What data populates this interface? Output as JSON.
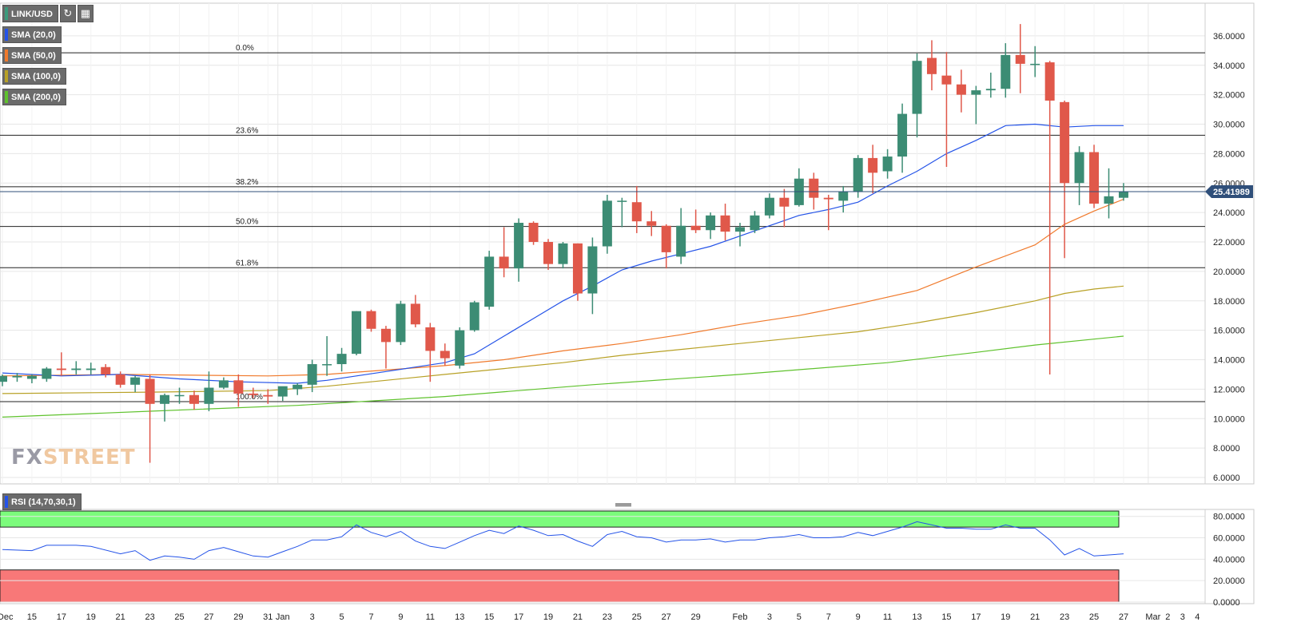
{
  "symbol": {
    "label": "LINK/USD",
    "refresh_icon": "refresh-icon",
    "calendar_icon": "calendar-icon",
    "color": "#3c9b7c"
  },
  "indicators": [
    {
      "label": "SMA (20,0)",
      "color": "#2453e8"
    },
    {
      "label": "SMA (50,0)",
      "color": "#f07a2c"
    },
    {
      "label": "SMA (100,0)",
      "color": "#b8a126"
    },
    {
      "label": "SMA (200,0)",
      "color": "#5fc22d"
    }
  ],
  "rsi": {
    "label": "RSI (14,70,30,1)",
    "color": "#2453e8",
    "overbought": 70,
    "oversold": 30
  },
  "logo": {
    "first": "FX",
    "second": "STREET"
  },
  "current_price": {
    "label": "25.41989",
    "value": 25.41989,
    "color": "#2f4f7a"
  },
  "colors": {
    "bull": "#3c8c74",
    "bear": "#e0584a",
    "grid": "#e6e6e6",
    "fib": "#222222",
    "rsi_overbought_zone": "#7cfc7c",
    "rsi_oversold_zone": "#f87878"
  },
  "chart_data": {
    "type": "candlestick",
    "ylim": [
      6,
      38
    ],
    "y_ticks": [
      "6.0000",
      "8.0000",
      "10.0000",
      "12.0000",
      "14.0000",
      "16.0000",
      "18.0000",
      "20.0000",
      "22.0000",
      "24.0000",
      "26.0000",
      "28.0000",
      "30.0000",
      "32.0000",
      "34.0000",
      "36.0000"
    ],
    "x_ticks": [
      {
        "label": "Dec",
        "idx": 0.2
      },
      {
        "label": "15",
        "idx": 2
      },
      {
        "label": "17",
        "idx": 4
      },
      {
        "label": "19",
        "idx": 6
      },
      {
        "label": "21",
        "idx": 8
      },
      {
        "label": "23",
        "idx": 10
      },
      {
        "label": "25",
        "idx": 12
      },
      {
        "label": "27",
        "idx": 14
      },
      {
        "label": "29",
        "idx": 16
      },
      {
        "label": "31",
        "idx": 18
      },
      {
        "label": "Jan",
        "idx": 19
      },
      {
        "label": "3",
        "idx": 21
      },
      {
        "label": "5",
        "idx": 23
      },
      {
        "label": "7",
        "idx": 25
      },
      {
        "label": "9",
        "idx": 27
      },
      {
        "label": "11",
        "idx": 29
      },
      {
        "label": "13",
        "idx": 31
      },
      {
        "label": "15",
        "idx": 33
      },
      {
        "label": "17",
        "idx": 35
      },
      {
        "label": "19",
        "idx": 37
      },
      {
        "label": "21",
        "idx": 39
      },
      {
        "label": "23",
        "idx": 41
      },
      {
        "label": "25",
        "idx": 43
      },
      {
        "label": "27",
        "idx": 45
      },
      {
        "label": "29",
        "idx": 47
      },
      {
        "label": "Feb",
        "idx": 50
      },
      {
        "label": "3",
        "idx": 52
      },
      {
        "label": "5",
        "idx": 54
      },
      {
        "label": "7",
        "idx": 56
      },
      {
        "label": "9",
        "idx": 58
      },
      {
        "label": "11",
        "idx": 60
      },
      {
        "label": "13",
        "idx": 62
      },
      {
        "label": "15",
        "idx": 64
      },
      {
        "label": "17",
        "idx": 66
      },
      {
        "label": "19",
        "idx": 68
      },
      {
        "label": "21",
        "idx": 70
      },
      {
        "label": "23",
        "idx": 72
      },
      {
        "label": "25",
        "idx": 74
      },
      {
        "label": "27",
        "idx": 76
      },
      {
        "label": "Mar",
        "idx": 78
      },
      {
        "label": "2",
        "idx": 79
      },
      {
        "label": "3",
        "idx": 80
      },
      {
        "label": "4",
        "idx": 81
      }
    ],
    "v_gridlines": [
      19,
      50,
      78
    ],
    "fibonacci": [
      {
        "label": "0.0%",
        "value": 34.85
      },
      {
        "label": "23.6%",
        "value": 29.25
      },
      {
        "label": "38.2%",
        "value": 25.75
      },
      {
        "label": "50.0%",
        "value": 23.05
      },
      {
        "label": "61.8%",
        "value": 20.25
      },
      {
        "label": "100.0%",
        "value": 11.15
      }
    ],
    "candles": [
      {
        "o": 12.5,
        "h": 13.0,
        "l": 12.2,
        "c": 12.9
      },
      {
        "o": 12.8,
        "h": 13.1,
        "l": 12.5,
        "c": 12.9
      },
      {
        "o": 12.7,
        "h": 13.0,
        "l": 12.4,
        "c": 12.9
      },
      {
        "o": 12.7,
        "h": 13.5,
        "l": 12.5,
        "c": 13.4
      },
      {
        "o": 13.4,
        "h": 14.5,
        "l": 12.9,
        "c": 13.3
      },
      {
        "o": 13.3,
        "h": 13.9,
        "l": 13.0,
        "c": 13.4
      },
      {
        "o": 13.3,
        "h": 13.8,
        "l": 13.0,
        "c": 13.4
      },
      {
        "o": 13.5,
        "h": 13.7,
        "l": 12.8,
        "c": 13.0
      },
      {
        "o": 13.0,
        "h": 13.2,
        "l": 12.1,
        "c": 12.3
      },
      {
        "o": 12.3,
        "h": 12.9,
        "l": 11.8,
        "c": 12.8
      },
      {
        "o": 12.7,
        "h": 13.0,
        "l": 7.0,
        "c": 11.0
      },
      {
        "o": 11.0,
        "h": 11.7,
        "l": 9.8,
        "c": 11.6
      },
      {
        "o": 11.6,
        "h": 12.1,
        "l": 11.0,
        "c": 11.6
      },
      {
        "o": 11.6,
        "h": 11.9,
        "l": 10.6,
        "c": 11.0
      },
      {
        "o": 11.0,
        "h": 13.2,
        "l": 10.5,
        "c": 12.1
      },
      {
        "o": 12.1,
        "h": 12.8,
        "l": 12.0,
        "c": 12.6
      },
      {
        "o": 12.6,
        "h": 13.0,
        "l": 10.8,
        "c": 11.7
      },
      {
        "o": 11.7,
        "h": 12.1,
        "l": 11.4,
        "c": 11.6
      },
      {
        "o": 11.6,
        "h": 12.0,
        "l": 11.0,
        "c": 11.5
      },
      {
        "o": 11.5,
        "h": 12.1,
        "l": 11.2,
        "c": 12.2
      },
      {
        "o": 12.0,
        "h": 12.4,
        "l": 11.6,
        "c": 12.3
      },
      {
        "o": 12.3,
        "h": 14.0,
        "l": 11.8,
        "c": 13.7
      },
      {
        "o": 13.7,
        "h": 15.6,
        "l": 12.9,
        "c": 13.7
      },
      {
        "o": 13.7,
        "h": 14.8,
        "l": 13.2,
        "c": 14.4
      },
      {
        "o": 14.4,
        "h": 17.3,
        "l": 14.3,
        "c": 17.3
      },
      {
        "o": 17.3,
        "h": 17.4,
        "l": 15.9,
        "c": 16.1
      },
      {
        "o": 16.1,
        "h": 16.3,
        "l": 13.4,
        "c": 15.2
      },
      {
        "o": 15.2,
        "h": 18.0,
        "l": 15.0,
        "c": 17.8
      },
      {
        "o": 17.8,
        "h": 18.4,
        "l": 16.2,
        "c": 16.4
      },
      {
        "o": 16.2,
        "h": 16.5,
        "l": 12.5,
        "c": 14.6
      },
      {
        "o": 14.6,
        "h": 15.1,
        "l": 13.6,
        "c": 14.1
      },
      {
        "o": 13.6,
        "h": 16.2,
        "l": 13.4,
        "c": 16.0
      },
      {
        "o": 16.0,
        "h": 18.0,
        "l": 15.9,
        "c": 17.9
      },
      {
        "o": 17.6,
        "h": 21.4,
        "l": 17.4,
        "c": 21.0
      },
      {
        "o": 21.0,
        "h": 23.0,
        "l": 19.6,
        "c": 20.2
      },
      {
        "o": 20.2,
        "h": 23.6,
        "l": 19.3,
        "c": 23.3
      },
      {
        "o": 23.3,
        "h": 23.4,
        "l": 21.8,
        "c": 22.0
      },
      {
        "o": 22.0,
        "h": 22.2,
        "l": 20.1,
        "c": 20.5
      },
      {
        "o": 20.5,
        "h": 22.0,
        "l": 20.2,
        "c": 21.9
      },
      {
        "o": 21.9,
        "h": 21.9,
        "l": 18.0,
        "c": 18.5
      },
      {
        "o": 18.5,
        "h": 22.3,
        "l": 17.1,
        "c": 21.7
      },
      {
        "o": 21.7,
        "h": 25.2,
        "l": 21.2,
        "c": 24.8
      },
      {
        "o": 24.8,
        "h": 25.0,
        "l": 23.0,
        "c": 24.8
      },
      {
        "o": 24.7,
        "h": 25.8,
        "l": 22.6,
        "c": 23.4
      },
      {
        "o": 23.4,
        "h": 24.1,
        "l": 22.4,
        "c": 23.1
      },
      {
        "o": 23.1,
        "h": 23.2,
        "l": 20.2,
        "c": 21.3
      },
      {
        "o": 21.0,
        "h": 24.3,
        "l": 20.5,
        "c": 23.1
      },
      {
        "o": 23.1,
        "h": 24.2,
        "l": 22.6,
        "c": 22.8
      },
      {
        "o": 22.8,
        "h": 24.0,
        "l": 22.2,
        "c": 23.8
      },
      {
        "o": 23.8,
        "h": 24.6,
        "l": 22.1,
        "c": 22.7
      },
      {
        "o": 22.7,
        "h": 23.3,
        "l": 21.7,
        "c": 23.0
      },
      {
        "o": 22.8,
        "h": 24.1,
        "l": 22.6,
        "c": 23.8
      },
      {
        "o": 23.8,
        "h": 25.3,
        "l": 23.6,
        "c": 25.0
      },
      {
        "o": 25.0,
        "h": 25.6,
        "l": 23.0,
        "c": 24.4
      },
      {
        "o": 24.5,
        "h": 27.0,
        "l": 24.4,
        "c": 26.3
      },
      {
        "o": 26.3,
        "h": 26.7,
        "l": 24.2,
        "c": 25.0
      },
      {
        "o": 25.0,
        "h": 25.2,
        "l": 22.8,
        "c": 24.9
      },
      {
        "o": 24.8,
        "h": 25.8,
        "l": 24.0,
        "c": 25.4
      },
      {
        "o": 25.4,
        "h": 27.9,
        "l": 25.0,
        "c": 27.7
      },
      {
        "o": 27.7,
        "h": 28.6,
        "l": 25.3,
        "c": 26.7
      },
      {
        "o": 26.8,
        "h": 28.3,
        "l": 26.3,
        "c": 27.8
      },
      {
        "o": 27.8,
        "h": 31.4,
        "l": 26.7,
        "c": 30.7
      },
      {
        "o": 30.7,
        "h": 34.8,
        "l": 29.1,
        "c": 34.3
      },
      {
        "o": 34.5,
        "h": 35.7,
        "l": 32.3,
        "c": 33.4
      },
      {
        "o": 33.3,
        "h": 34.9,
        "l": 27.1,
        "c": 32.7
      },
      {
        "o": 32.7,
        "h": 33.7,
        "l": 30.8,
        "c": 32.0
      },
      {
        "o": 32.0,
        "h": 32.6,
        "l": 30.0,
        "c": 32.3
      },
      {
        "o": 32.3,
        "h": 33.5,
        "l": 31.8,
        "c": 32.4
      },
      {
        "o": 32.4,
        "h": 35.5,
        "l": 31.8,
        "c": 34.7
      },
      {
        "o": 34.7,
        "h": 36.8,
        "l": 32.1,
        "c": 34.1
      },
      {
        "o": 34.1,
        "h": 35.3,
        "l": 33.2,
        "c": 34.1
      },
      {
        "o": 34.2,
        "h": 34.3,
        "l": 13.0,
        "c": 31.6
      },
      {
        "o": 31.5,
        "h": 31.6,
        "l": 20.9,
        "c": 26.0
      },
      {
        "o": 26.0,
        "h": 28.5,
        "l": 24.5,
        "c": 28.1
      },
      {
        "o": 28.1,
        "h": 28.6,
        "l": 24.3,
        "c": 24.6
      },
      {
        "o": 24.6,
        "h": 27.0,
        "l": 23.6,
        "c": 25.1
      },
      {
        "o": 25.0,
        "h": 26.0,
        "l": 24.8,
        "c": 25.4
      }
    ],
    "sma20": [
      [
        0,
        13.1
      ],
      [
        4,
        12.9
      ],
      [
        8,
        13.0
      ],
      [
        12,
        12.7
      ],
      [
        16,
        12.5
      ],
      [
        20,
        12.4
      ],
      [
        22,
        12.6
      ],
      [
        24,
        12.9
      ],
      [
        26,
        13.2
      ],
      [
        28,
        13.5
      ],
      [
        30,
        13.8
      ],
      [
        32,
        14.4
      ],
      [
        34,
        15.6
      ],
      [
        36,
        16.8
      ],
      [
        38,
        18.0
      ],
      [
        40,
        19.0
      ],
      [
        42,
        20.1
      ],
      [
        44,
        20.7
      ],
      [
        46,
        21.2
      ],
      [
        48,
        21.7
      ],
      [
        50,
        22.4
      ],
      [
        52,
        23.1
      ],
      [
        54,
        23.8
      ],
      [
        56,
        24.2
      ],
      [
        58,
        24.7
      ],
      [
        60,
        25.8
      ],
      [
        62,
        26.8
      ],
      [
        64,
        28.0
      ],
      [
        66,
        28.9
      ],
      [
        68,
        29.9
      ],
      [
        70,
        30.0
      ],
      [
        72,
        29.8
      ],
      [
        74,
        29.9
      ],
      [
        76,
        29.9
      ]
    ],
    "sma50": [
      [
        0,
        12.9
      ],
      [
        8,
        13.0
      ],
      [
        18,
        12.9
      ],
      [
        22,
        13.0
      ],
      [
        26,
        13.3
      ],
      [
        30,
        13.6
      ],
      [
        34,
        14.0
      ],
      [
        38,
        14.6
      ],
      [
        42,
        15.1
      ],
      [
        46,
        15.7
      ],
      [
        50,
        16.4
      ],
      [
        54,
        17.0
      ],
      [
        58,
        17.8
      ],
      [
        62,
        18.7
      ],
      [
        66,
        20.3
      ],
      [
        70,
        21.8
      ],
      [
        72,
        23.2
      ],
      [
        74,
        24.1
      ],
      [
        76,
        24.9
      ]
    ],
    "sma100": [
      [
        0,
        11.7
      ],
      [
        10,
        11.8
      ],
      [
        18,
        11.9
      ],
      [
        22,
        12.2
      ],
      [
        26,
        12.6
      ],
      [
        30,
        13.0
      ],
      [
        34,
        13.4
      ],
      [
        38,
        13.8
      ],
      [
        42,
        14.3
      ],
      [
        46,
        14.7
      ],
      [
        50,
        15.1
      ],
      [
        54,
        15.5
      ],
      [
        58,
        15.9
      ],
      [
        62,
        16.5
      ],
      [
        66,
        17.2
      ],
      [
        70,
        18.0
      ],
      [
        72,
        18.5
      ],
      [
        74,
        18.8
      ],
      [
        76,
        19.0
      ]
    ],
    "sma200": [
      [
        0,
        10.1
      ],
      [
        10,
        10.5
      ],
      [
        20,
        10.9
      ],
      [
        30,
        11.5
      ],
      [
        40,
        12.3
      ],
      [
        50,
        13.0
      ],
      [
        60,
        13.8
      ],
      [
        66,
        14.5
      ],
      [
        70,
        15.0
      ],
      [
        74,
        15.4
      ],
      [
        76,
        15.6
      ]
    ],
    "rsi_ticks": [
      "0.0000",
      "20.0000",
      "40.0000",
      "60.0000",
      "80.0000"
    ],
    "rsi_values": [
      [
        0,
        49
      ],
      [
        2,
        48
      ],
      [
        3,
        53
      ],
      [
        5,
        53
      ],
      [
        6,
        52
      ],
      [
        8,
        45
      ],
      [
        9,
        48
      ],
      [
        10,
        39
      ],
      [
        11,
        43
      ],
      [
        12,
        42
      ],
      [
        13,
        40
      ],
      [
        14,
        48
      ],
      [
        15,
        51
      ],
      [
        16,
        47
      ],
      [
        17,
        43
      ],
      [
        18,
        42
      ],
      [
        19,
        47
      ],
      [
        20,
        52
      ],
      [
        21,
        58
      ],
      [
        22,
        58
      ],
      [
        23,
        61
      ],
      [
        24,
        72
      ],
      [
        25,
        65
      ],
      [
        26,
        61
      ],
      [
        27,
        66
      ],
      [
        28,
        57
      ],
      [
        29,
        52
      ],
      [
        30,
        50
      ],
      [
        31,
        56
      ],
      [
        32,
        62
      ],
      [
        33,
        67
      ],
      [
        34,
        64
      ],
      [
        35,
        71
      ],
      [
        36,
        67
      ],
      [
        37,
        62
      ],
      [
        38,
        63
      ],
      [
        39,
        57
      ],
      [
        40,
        52
      ],
      [
        41,
        63
      ],
      [
        42,
        66
      ],
      [
        43,
        61
      ],
      [
        44,
        60
      ],
      [
        45,
        56
      ],
      [
        46,
        58
      ],
      [
        47,
        58
      ],
      [
        48,
        59
      ],
      [
        49,
        56
      ],
      [
        50,
        58
      ],
      [
        51,
        58
      ],
      [
        52,
        60
      ],
      [
        53,
        61
      ],
      [
        54,
        63
      ],
      [
        55,
        60
      ],
      [
        56,
        60
      ],
      [
        57,
        61
      ],
      [
        58,
        65
      ],
      [
        59,
        62
      ],
      [
        60,
        66
      ],
      [
        61,
        70
      ],
      [
        62,
        75
      ],
      [
        63,
        72
      ],
      [
        64,
        69
      ],
      [
        65,
        69
      ],
      [
        66,
        68
      ],
      [
        67,
        68
      ],
      [
        68,
        72
      ],
      [
        69,
        69
      ],
      [
        70,
        69
      ],
      [
        71,
        58
      ],
      [
        72,
        44
      ],
      [
        73,
        50
      ],
      [
        74,
        43
      ],
      [
        75,
        44
      ],
      [
        76,
        45
      ]
    ]
  }
}
